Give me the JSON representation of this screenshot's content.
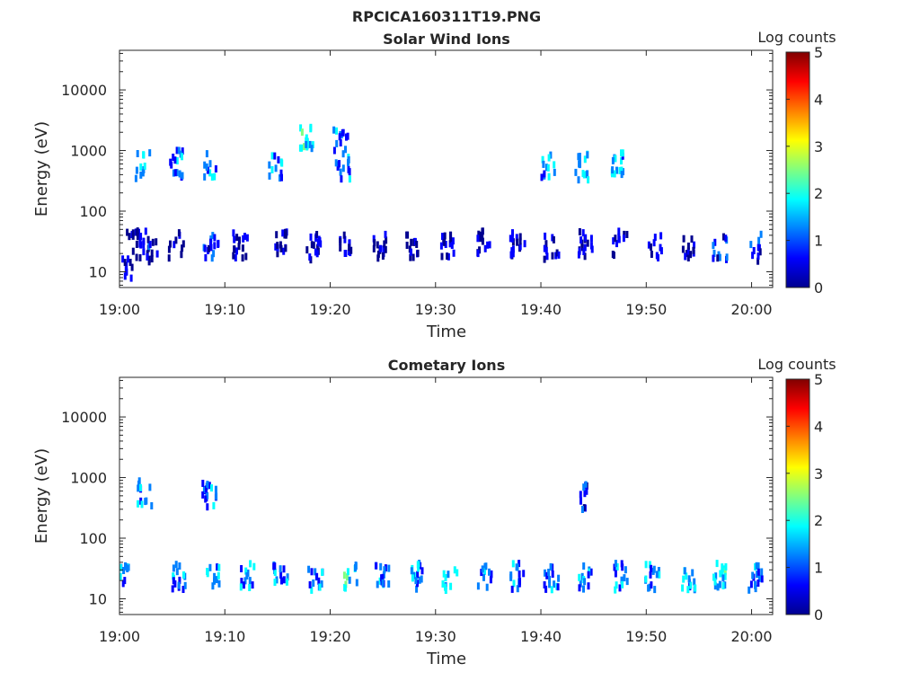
{
  "figure_title": "RPCICA160311T19.PNG",
  "colors": {
    "jet": [
      "#00008f",
      "#0000ff",
      "#0080ff",
      "#00ffff",
      "#80ff80",
      "#ffff00",
      "#ff8000",
      "#ff0000",
      "#800000"
    ]
  },
  "chart_data": [
    {
      "type": "heatmap",
      "title": "Solar Wind Ions",
      "xlabel": "Time",
      "ylabel": "Energy (eV)",
      "x_range": [
        "19:00",
        "20:02"
      ],
      "x_ticks": [
        "19:00",
        "19:10",
        "19:20",
        "19:30",
        "19:40",
        "19:50",
        "20:00"
      ],
      "y_scale": "log",
      "y_range": [
        5.5,
        45000
      ],
      "y_ticks": [
        "10",
        "100",
        "1000",
        "10000"
      ],
      "colorbar": {
        "label": "Log counts",
        "range": [
          0,
          5
        ],
        "ticks": [
          "0",
          "1",
          "2",
          "3",
          "4",
          "5"
        ]
      },
      "bursts": [
        {
          "t": 0.7,
          "e": 13,
          "c": 0.8
        },
        {
          "t": 1.4,
          "e": 28,
          "c": 0.9
        },
        {
          "t": 2.2,
          "e": 550,
          "c": 2.2
        },
        {
          "t": 2.3,
          "e": 28,
          "c": 1.0
        },
        {
          "t": 3.0,
          "e": 22,
          "c": 0.8
        },
        {
          "t": 5.5,
          "e": 600,
          "c": 1.8
        },
        {
          "t": 5.4,
          "e": 28,
          "c": 0.9
        },
        {
          "t": 8.6,
          "e": 550,
          "c": 2.0
        },
        {
          "t": 8.7,
          "e": 25,
          "c": 1.5
        },
        {
          "t": 11.5,
          "e": 28,
          "c": 0.9
        },
        {
          "t": 14.8,
          "e": 550,
          "c": 1.9
        },
        {
          "t": 15.5,
          "e": 28,
          "c": 0.9
        },
        {
          "t": 17.8,
          "e": 1500,
          "c": 2.4
        },
        {
          "t": 18.5,
          "e": 25,
          "c": 1.0
        },
        {
          "t": 21.0,
          "e": 1400,
          "c": 1.8
        },
        {
          "t": 21.2,
          "e": 550,
          "c": 1.8
        },
        {
          "t": 21.5,
          "e": 28,
          "c": 0.9
        },
        {
          "t": 24.8,
          "e": 28,
          "c": 0.8
        },
        {
          "t": 27.9,
          "e": 28,
          "c": 0.8
        },
        {
          "t": 31.2,
          "e": 25,
          "c": 1.0
        },
        {
          "t": 34.5,
          "e": 28,
          "c": 0.9
        },
        {
          "t": 37.8,
          "e": 28,
          "c": 0.9
        },
        {
          "t": 40.7,
          "e": 550,
          "c": 1.9
        },
        {
          "t": 41.0,
          "e": 25,
          "c": 1.0
        },
        {
          "t": 43.9,
          "e": 550,
          "c": 2.0
        },
        {
          "t": 44.3,
          "e": 28,
          "c": 0.9
        },
        {
          "t": 47.2,
          "e": 550,
          "c": 2.0
        },
        {
          "t": 47.5,
          "e": 28,
          "c": 0.9
        },
        {
          "t": 50.9,
          "e": 25,
          "c": 1.3
        },
        {
          "t": 54.0,
          "e": 28,
          "c": 0.9
        },
        {
          "t": 57.0,
          "e": 25,
          "c": 1.4
        },
        {
          "t": 60.2,
          "e": 25,
          "c": 1.2
        }
      ]
    },
    {
      "type": "heatmap",
      "title": "Cometary Ions",
      "xlabel": "Time",
      "ylabel": "Energy (eV)",
      "x_range": [
        "19:00",
        "20:02"
      ],
      "x_ticks": [
        "19:00",
        "19:10",
        "19:20",
        "19:30",
        "19:40",
        "19:50",
        "20:00"
      ],
      "y_scale": "log",
      "y_range": [
        5.5,
        45000
      ],
      "y_ticks": [
        "10",
        "100",
        "1000",
        "10000"
      ],
      "colorbar": {
        "label": "Log counts",
        "range": [
          0,
          5
        ],
        "ticks": [
          "0",
          "1",
          "2",
          "3",
          "4",
          "5"
        ]
      },
      "bursts": [
        {
          "t": 0.2,
          "e": 25,
          "c": 1.8
        },
        {
          "t": 2.4,
          "e": 550,
          "c": 2.0
        },
        {
          "t": 5.6,
          "e": 23,
          "c": 1.8
        },
        {
          "t": 8.6,
          "e": 550,
          "c": 1.6
        },
        {
          "t": 9.0,
          "e": 23,
          "c": 2.2
        },
        {
          "t": 12.1,
          "e": 23,
          "c": 1.8
        },
        {
          "t": 15.3,
          "e": 23,
          "c": 1.8
        },
        {
          "t": 18.6,
          "e": 23,
          "c": 1.9
        },
        {
          "t": 21.9,
          "e": 23,
          "c": 2.4
        },
        {
          "t": 25.0,
          "e": 23,
          "c": 1.7
        },
        {
          "t": 28.2,
          "e": 23,
          "c": 2.0
        },
        {
          "t": 31.4,
          "e": 23,
          "c": 2.1
        },
        {
          "t": 34.6,
          "e": 23,
          "c": 1.7
        },
        {
          "t": 37.8,
          "e": 23,
          "c": 2.0
        },
        {
          "t": 41.0,
          "e": 23,
          "c": 1.8
        },
        {
          "t": 43.9,
          "e": 500,
          "c": 1.3
        },
        {
          "t": 44.3,
          "e": 23,
          "c": 1.9
        },
        {
          "t": 47.5,
          "e": 23,
          "c": 1.9
        },
        {
          "t": 50.6,
          "e": 23,
          "c": 2.0
        },
        {
          "t": 54.0,
          "e": 23,
          "c": 1.9
        },
        {
          "t": 57.1,
          "e": 23,
          "c": 2.3
        },
        {
          "t": 60.3,
          "e": 23,
          "c": 1.6
        }
      ]
    }
  ]
}
